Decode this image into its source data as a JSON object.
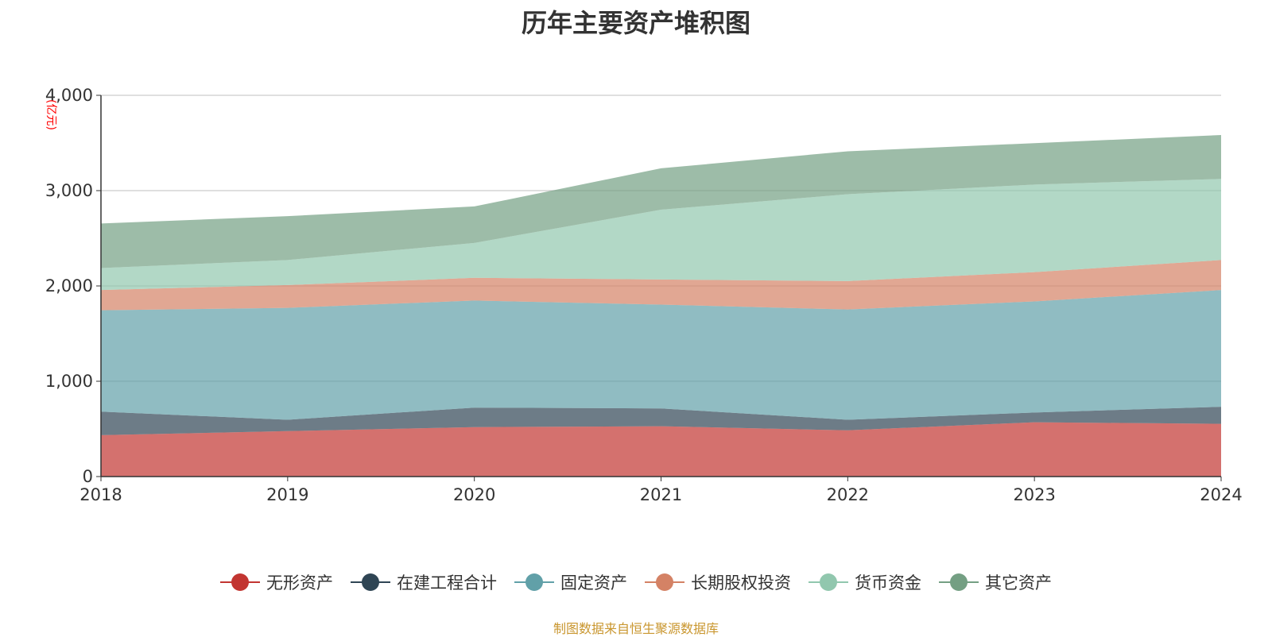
{
  "title": "历年主要资产堆积图",
  "source": "制图数据来自恒生聚源数据库",
  "chart_data": {
    "type": "area",
    "stacked": true,
    "title": "历年主要资产堆积图",
    "ylabel": "(亿元)",
    "ylabel_color": "#ff0000",
    "ylim": [
      0,
      4000
    ],
    "yticks": [
      "0",
      "1,000",
      "2,000",
      "3,000",
      "4,000"
    ],
    "ytick_values": [
      0,
      1000,
      2000,
      3000,
      4000
    ],
    "grid": true,
    "legend_position": "bottom",
    "categories": [
      "2018",
      "2019",
      "2020",
      "2021",
      "2022",
      "2023",
      "2024"
    ],
    "series": [
      {
        "name": "无形资产",
        "color": "#c23531",
        "values": [
          434,
          477,
          519,
          528,
          485,
          570,
          553
        ]
      },
      {
        "name": "在建工程合计",
        "color": "#2f4554",
        "values": [
          247,
          119,
          204,
          187,
          111,
          102,
          179
        ]
      },
      {
        "name": "固定资产",
        "color": "#61a0a8",
        "values": [
          1064,
          1174,
          1124,
          1089,
          1157,
          1166,
          1225
        ]
      },
      {
        "name": "长期股权投资",
        "color": "#d48265",
        "values": [
          212,
          239,
          238,
          264,
          298,
          307,
          315
        ]
      },
      {
        "name": "货币资金",
        "color": "#91c7ae",
        "values": [
          230,
          263,
          366,
          732,
          911,
          919,
          851
        ]
      },
      {
        "name": "其它资产",
        "color": "#749f83",
        "values": [
          468,
          460,
          383,
          434,
          451,
          434,
          460
        ]
      }
    ]
  }
}
